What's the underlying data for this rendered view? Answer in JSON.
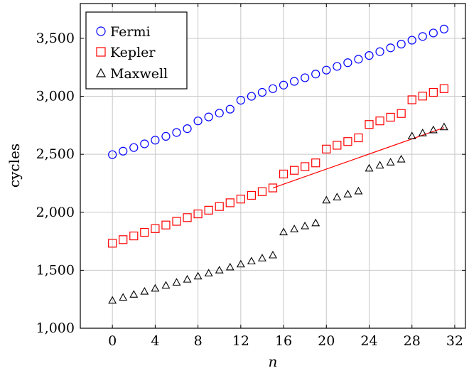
{
  "chart_data": {
    "type": "scatter",
    "xlabel": "n",
    "ylabel": "cycles",
    "xlim": [
      -3,
      33
    ],
    "ylim": [
      1000,
      3800
    ],
    "x_ticks": [
      0,
      4,
      8,
      12,
      16,
      20,
      24,
      28,
      32
    ],
    "x_tick_labels": [
      "0",
      "4",
      "8",
      "12",
      "16",
      "20",
      "24",
      "28",
      "32"
    ],
    "y_ticks": [
      1000,
      1500,
      2000,
      2500,
      3000,
      3500
    ],
    "y_tick_labels": [
      "1,000",
      "1,500",
      "2,000",
      "2,500",
      "3,000",
      "3,500"
    ],
    "grid": true,
    "legend_position": "top-left",
    "x": [
      0,
      1,
      2,
      3,
      4,
      5,
      6,
      7,
      8,
      9,
      10,
      11,
      12,
      13,
      14,
      15,
      16,
      17,
      18,
      19,
      20,
      21,
      22,
      23,
      24,
      25,
      26,
      27,
      28,
      29,
      30,
      31
    ],
    "series": [
      {
        "name": "Fermi",
        "marker": "circle",
        "color": "#0000ff",
        "values": [
          2497,
          2527,
          2558,
          2590,
          2622,
          2655,
          2688,
          2721,
          2788,
          2822,
          2855,
          2889,
          2966,
          3000,
          3034,
          3066,
          3097,
          3129,
          3160,
          3192,
          3226,
          3258,
          3290,
          3320,
          3352,
          3385,
          3418,
          3450,
          3484,
          3516,
          3546,
          3580
        ]
      },
      {
        "name": "Kepler",
        "marker": "square",
        "color": "#ff0000",
        "values": [
          1733,
          1764,
          1796,
          1827,
          1859,
          1890,
          1922,
          1954,
          1986,
          2018,
          2050,
          2082,
          2114,
          2146,
          2178,
          2210,
          2330,
          2362,
          2394,
          2426,
          2545,
          2578,
          2610,
          2642,
          2757,
          2788,
          2820,
          2852,
          2970,
          3002,
          3034,
          3066
        ]
      },
      {
        "name": "Maxwell",
        "marker": "triangle",
        "color": "#000000",
        "values": [
          1240,
          1266,
          1292,
          1318,
          1344,
          1370,
          1396,
          1422,
          1449,
          1475,
          1501,
          1527,
          1553,
          1579,
          1605,
          1631,
          1830,
          1856,
          1882,
          1908,
          2105,
          2131,
          2157,
          2183,
          2380,
          2406,
          2432,
          2458,
          2658,
          2684,
          2710,
          2736
        ]
      }
    ],
    "trend_line": {
      "color": "#ff0000",
      "from": [
        15,
        2210
      ],
      "to": [
        31,
        2730
      ]
    }
  }
}
